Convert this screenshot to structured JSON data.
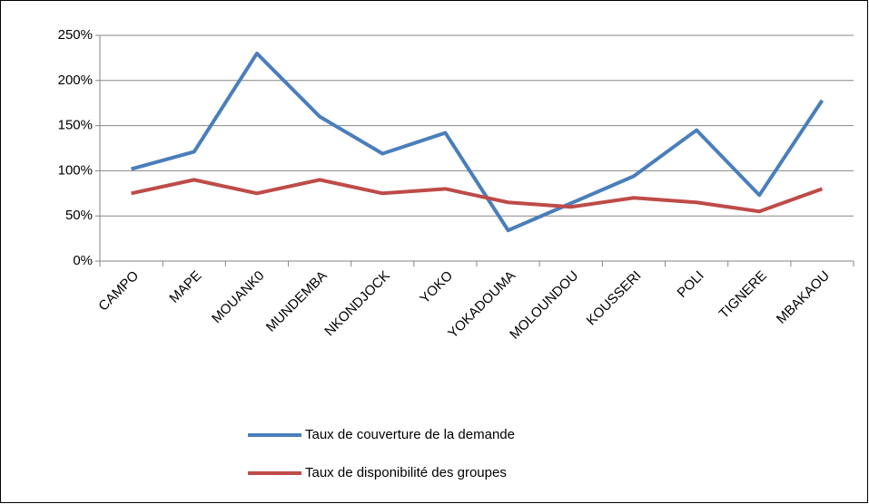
{
  "chart_data": {
    "type": "line",
    "categories": [
      "CAMPO",
      "MAPE",
      "MOUANK0",
      "MUNDEMBA",
      "NKONDJOCK",
      "YOKO",
      "YOKADOUMA",
      "MOLOUNDOU",
      "KOUSSERI",
      "POLI",
      "TIGNERE",
      "MBAKAOU"
    ],
    "series": [
      {
        "name": "Taux de couverture de la demande",
        "color": "#4a7ebb",
        "values": [
          102,
          121,
          230,
          160,
          119,
          142,
          34,
          64,
          94,
          145,
          73,
          178
        ]
      },
      {
        "name": "Taux de disponibilité des groupes",
        "color": "#be4b48",
        "values": [
          75,
          90,
          75,
          90,
          75,
          80,
          65,
          60,
          70,
          65,
          55,
          80
        ]
      }
    ],
    "ylim": [
      0,
      250
    ],
    "yticks": [
      {
        "value": 0,
        "label": "0%"
      },
      {
        "value": 50,
        "label": "50%"
      },
      {
        "value": 100,
        "label": "100%"
      },
      {
        "value": 150,
        "label": "150%"
      },
      {
        "value": 200,
        "label": "200%"
      },
      {
        "value": 250,
        "label": "250%"
      }
    ],
    "grid": true,
    "legend": "bottom"
  }
}
